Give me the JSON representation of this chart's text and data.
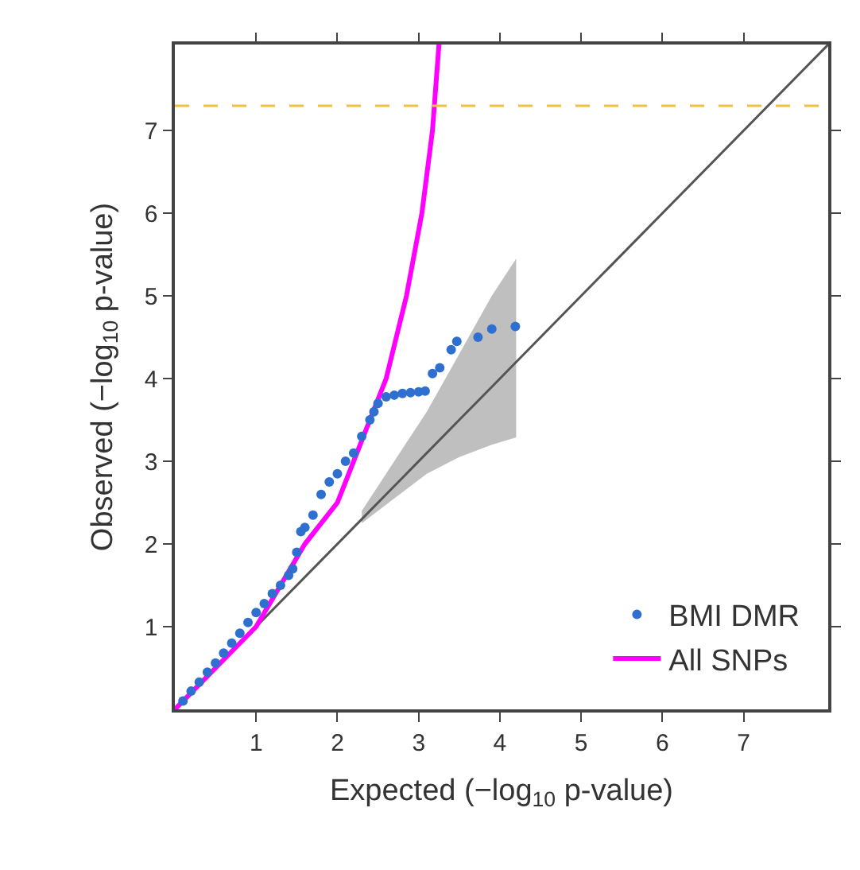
{
  "chart_data": {
    "type": "scatter",
    "xlabel": "Expected (−log$_{10}$ p-value)",
    "ylabel": "Observed (−log$_{10}$ p-value)",
    "xlim": [
      0,
      8.04
    ],
    "ylim": [
      0,
      8.04
    ],
    "xticks": [
      1,
      2,
      3,
      4,
      5,
      6,
      7
    ],
    "yticks": [
      1,
      2,
      3,
      4,
      5,
      6,
      7
    ],
    "legend": "bottom right",
    "ref_lines": [
      {
        "axis": "y",
        "value": 7.3,
        "color": "#f0c040",
        "line_style": "dashed"
      }
    ],
    "series": [
      {
        "type": "line",
        "color": "#555555",
        "x": [
          0,
          2.3,
          2.7,
          3.1,
          3.5,
          3.9,
          4.2,
          8.04
        ],
        "values": [
          0,
          2.3,
          2.7,
          3.1,
          3.5,
          3.9,
          4.2,
          8.04
        ],
        "lower": [
          null,
          2.25,
          2.55,
          2.85,
          3.05,
          3.2,
          3.29,
          null
        ],
        "upper": [
          null,
          2.4,
          3.0,
          3.6,
          4.3,
          5.0,
          5.45,
          null
        ]
      },
      {
        "name": "BMI DMR",
        "marker": "circle",
        "color": "#2f6fd0",
        "x": [
          0.1,
          0.2,
          0.3,
          0.4,
          0.5,
          0.6,
          0.7,
          0.8,
          0.9,
          1.0,
          1.1,
          1.2,
          1.3,
          1.4,
          1.45,
          1.5,
          1.55,
          1.6,
          1.7,
          1.8,
          1.9,
          2.0,
          2.1,
          2.2,
          2.3,
          2.4,
          2.45,
          2.5,
          2.6,
          2.7,
          2.8,
          2.9,
          3.0,
          3.08,
          3.17,
          3.26,
          3.4,
          3.47,
          3.73,
          3.9,
          4.19
        ],
        "values": [
          0.1,
          0.22,
          0.33,
          0.45,
          0.56,
          0.68,
          0.8,
          0.92,
          1.05,
          1.17,
          1.28,
          1.4,
          1.5,
          1.62,
          1.7,
          1.9,
          2.15,
          2.2,
          2.35,
          2.6,
          2.75,
          2.85,
          3.0,
          3.1,
          3.3,
          3.5,
          3.6,
          3.7,
          3.78,
          3.8,
          3.82,
          3.83,
          3.84,
          3.85,
          4.06,
          4.13,
          4.35,
          4.45,
          4.5,
          4.6,
          4.63
        ]
      },
      {
        "name": "All SNPs",
        "type": "line",
        "color": "#ff00ff",
        "x": [
          0,
          0.5,
          1.0,
          1.6,
          2.0,
          2.2,
          2.4,
          2.6,
          2.85,
          3.04,
          3.17,
          3.25
        ],
        "values": [
          0,
          0.5,
          1.0,
          2.0,
          2.5,
          3.0,
          3.5,
          4.0,
          5.0,
          6.0,
          7.0,
          8.04
        ]
      }
    ]
  }
}
